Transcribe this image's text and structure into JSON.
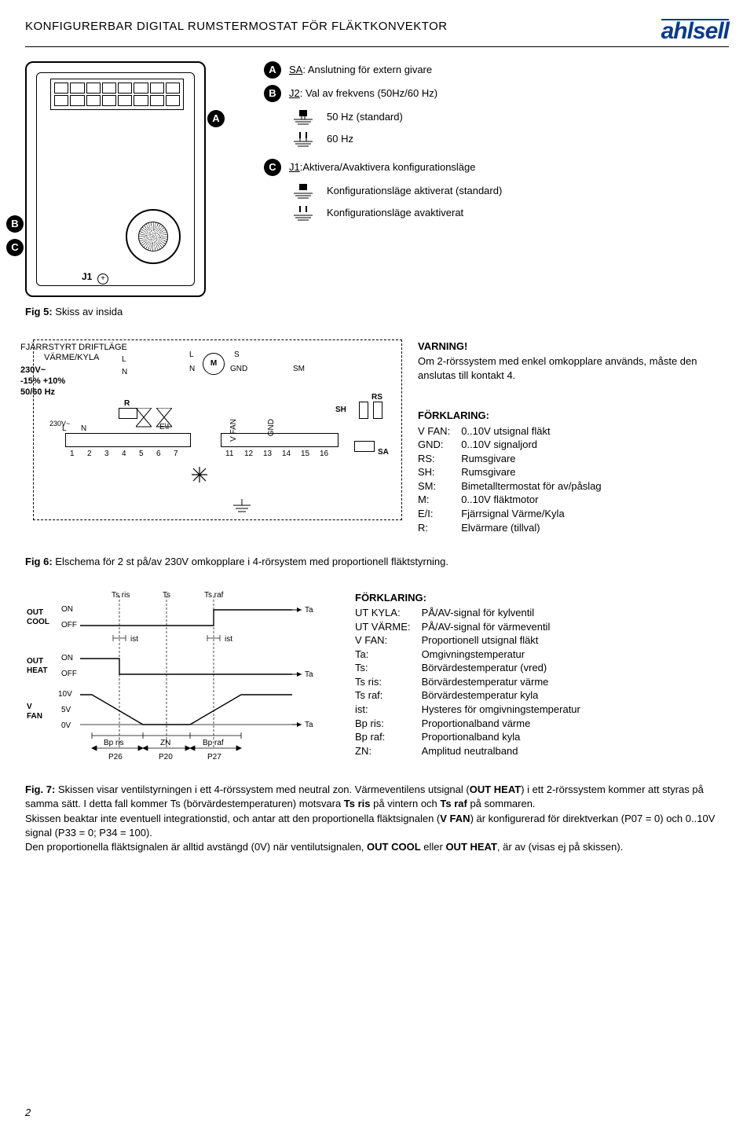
{
  "header": {
    "title": "KONFIGURERBAR DIGITAL RUMSTERMOSTAT FÖR FLÄKTKONVEKTOR",
    "logo_text": "ahlsell",
    "logo_color": "#0a3a8a"
  },
  "section1": {
    "badge_a": "A",
    "badge_b": "B",
    "badge_c": "C",
    "j1_marker": "J1",
    "legend_a_prefix": "SA",
    "legend_a_text": ": Anslutning för extern givare",
    "legend_b_prefix": "J2",
    "legend_b_text": ": Val av frekvens (50Hz/60 Hz)",
    "opt_b1": "50 Hz (standard)",
    "opt_b2": "60 Hz",
    "legend_c_prefix": "J1",
    "legend_c_text": ":Aktivera/Avaktivera konfigurationsläge",
    "opt_c1": "Konfigurationsläge aktiverat (standard)",
    "opt_c2": "Konfigurationsläge avaktiverat",
    "fig5_label": "Fig 5:",
    "fig5_text": " Skiss av insida"
  },
  "section2": {
    "side_label_1": "FJÄRRSTYRT DRIFTLÄGE",
    "side_label_2": "VÄRME/KYLA",
    "side_label_3": "230V~",
    "side_label_4": "-15% +10%",
    "side_label_5": "50/60 Hz",
    "sch": {
      "L": "L",
      "N": "N",
      "M": "M",
      "S": "S",
      "GND": "GND",
      "SM": "SM",
      "SH": "SH",
      "RS": "RS",
      "SA": "SA",
      "R": "R",
      "v230": "230V~",
      "EI": "E\\I",
      "VFAN": "V FAN",
      "GND2": "GND",
      "n1": "1",
      "n2": "2",
      "n3": "3",
      "n4": "4",
      "n5": "5",
      "n6": "6",
      "n7": "7",
      "n11": "11",
      "n12": "12",
      "n13": "13",
      "n14": "14",
      "n15": "15",
      "n16": "16"
    },
    "warning_title": "VARNING!",
    "warning_text": "Om 2-rörssystem med enkel omkopplare används, måste den anslutas till kontakt 4.",
    "explain_title": "FÖRKLARING:",
    "kv": [
      {
        "k": "V FAN:",
        "v": "0..10V utsignal fläkt"
      },
      {
        "k": "GND:",
        "v": "0..10V signaljord"
      },
      {
        "k": "RS:",
        "v": "Rumsgivare"
      },
      {
        "k": "SH:",
        "v": "Rumsgivare"
      },
      {
        "k": "SM:",
        "v": "Bimetalltermostat för av/påslag"
      },
      {
        "k": "M:",
        "v": "0..10V fläktmotor"
      },
      {
        "k": "E/I:",
        "v": "Fjärrsignal Värme/Kyla"
      },
      {
        "k": "R:",
        "v": "Elvärmare (tillval)"
      }
    ],
    "fig6_label": "Fig 6:",
    "fig6_text": " Elschema för 2 st på/av 230V omkopplare i 4-rörsystem med proportionell fläktstyrning."
  },
  "section3": {
    "axis": {
      "out_cool": "OUT\nCOOL",
      "out_heat": "OUT\nHEAT",
      "v_fan": "V\nFAN",
      "on": "ON",
      "off": "OFF",
      "v10": "10V",
      "v5": "5V",
      "v0": "0V",
      "ts_ris": "Ts ris",
      "ts": "Ts",
      "ts_raf": "Ts raf",
      "ta": "Ta",
      "ist": "ist",
      "bp_ris": "Bp ris",
      "zn": "ZN",
      "bp_raf": "Bp raf",
      "p26": "P26",
      "p20": "P20",
      "p27": "P27"
    },
    "explain_title": "FÖRKLARING:",
    "kv": [
      {
        "k": "UT KYLA:",
        "v": "PÅ/AV-signal för kylventil"
      },
      {
        "k": "UT VÄRME:",
        "v": "PÅ/AV-signal för värmeventil"
      },
      {
        "k": "V FAN:",
        "v": "Proportionell utsignal fläkt"
      },
      {
        "k": "Ta:",
        "v": "Omgivningstemperatur"
      },
      {
        "k": "Ts:",
        "v": "Börvärdestemperatur (vred)"
      },
      {
        "k": "Ts ris:",
        "v": "Börvärdestemperatur värme"
      },
      {
        "k": "Ts raf:",
        "v": "Börvärdestemperatur kyla"
      },
      {
        "k": "ist:",
        "v": "Hysteres för omgivningstemperatur"
      },
      {
        "k": "Bp ris:",
        "v": "Proportionalband värme"
      },
      {
        "k": "Bp raf:",
        "v": "Proportionalband kyla"
      },
      {
        "k": "ZN:",
        "v": "Amplitud neutralband"
      }
    ],
    "fig7_label": "Fig. 7:",
    "fig7_text_1": " Skissen visar ventilstyrningen i ett 4-rörssystem med neutral zon. Värmeventilens utsignal (",
    "fig7_bold_1": "OUT HEAT",
    "fig7_text_2": ") i ett 2-rörssystem kommer att styras på samma sätt. I detta fall kommer Ts (börvärdestemperaturen) motsvara ",
    "fig7_bold_2": "Ts ris",
    "fig7_text_3": " på vintern och ",
    "fig7_bold_3": "Ts raf",
    "fig7_text_4": " på sommaren.",
    "para2_a": "Skissen beaktar inte eventuell integrationstid, och antar att den proportionella fläktsignalen (",
    "para2_b": "V FAN",
    "para2_c": ") är konfigurerad för direktverkan  (P07 = 0) och 0..10V signal (P33 = 0; P34 = 100).",
    "para3_a": "Den proportionella fläktsignalen är alltid avstängd (0V) när ventilutsignalen, ",
    "para3_b": "OUT COOL",
    "para3_c": " eller ",
    "para3_d": "OUT HEAT",
    "para3_e": ", är av (visas ej på skissen)."
  },
  "page_number": "2"
}
